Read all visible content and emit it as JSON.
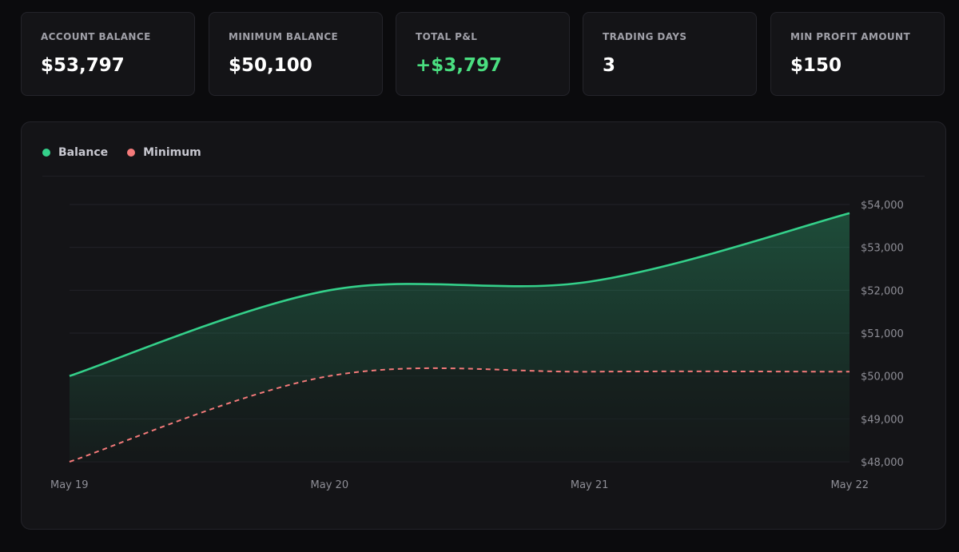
{
  "stats": [
    {
      "label": "ACCOUNT BALANCE",
      "value": "$53,797",
      "tone": "neutral"
    },
    {
      "label": "MINIMUM BALANCE",
      "value": "$50,100",
      "tone": "neutral"
    },
    {
      "label": "TOTAL P&L",
      "value": "+$3,797",
      "tone": "positive"
    },
    {
      "label": "TRADING DAYS",
      "value": "3",
      "tone": "neutral"
    },
    {
      "label": "MIN PROFIT AMOUNT",
      "value": "$150",
      "tone": "neutral"
    }
  ],
  "colors": {
    "balance": "#34d08a",
    "minimum": "#f47a7a",
    "positive": "#4ade80"
  },
  "chart_data": {
    "type": "area",
    "x": [
      "May 19",
      "May 20",
      "May 21",
      "May 22"
    ],
    "series": [
      {
        "name": "Balance",
        "values": [
          50000,
          52000,
          52200,
          53797
        ],
        "style": "solid-area"
      },
      {
        "name": "Minimum",
        "values": [
          48000,
          50000,
          50100,
          50100
        ],
        "style": "dashed"
      }
    ],
    "yticks": [
      "$48,000",
      "$49,000",
      "$50,000",
      "$51,000",
      "$52,000",
      "$53,000",
      "$54,000"
    ],
    "ylim": [
      48000,
      54000
    ],
    "y_axis_side": "right",
    "grid": true,
    "legend": "top-left"
  }
}
